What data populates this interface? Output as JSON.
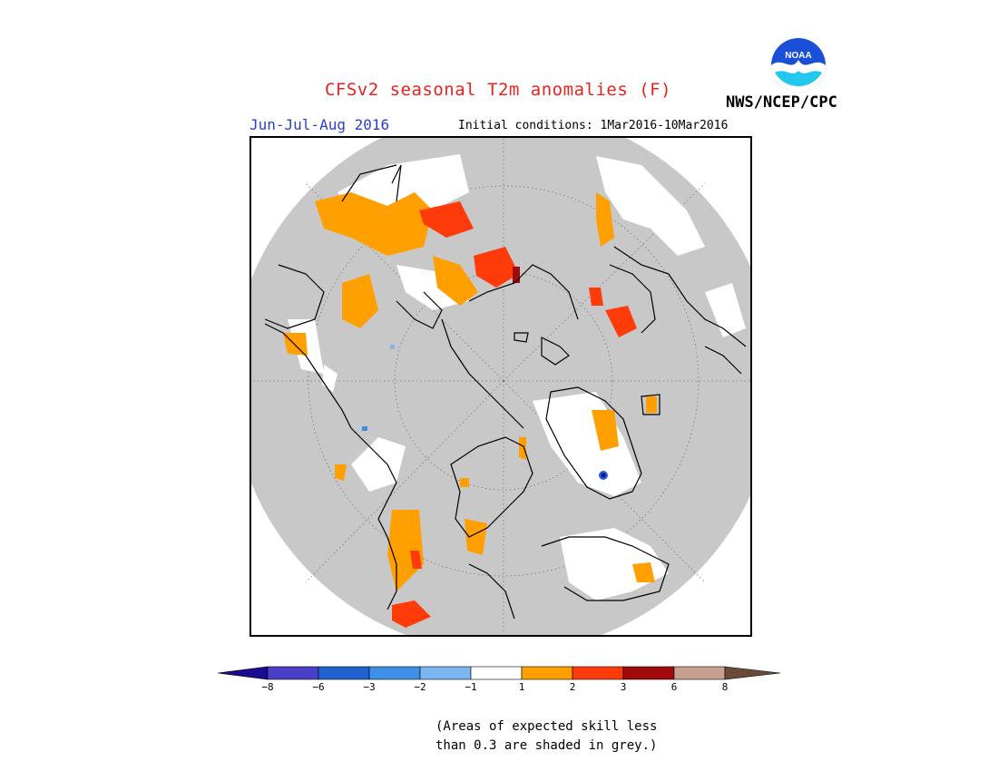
{
  "header": {
    "title": "CFSv2 seasonal T2m anomalies (F)",
    "agency": "NWS/NCEP/CPC",
    "logo_text": "NOAA",
    "period": "Jun-Jul-Aug 2016",
    "initial_conditions": "Initial conditions: 1Mar2016-10Mar2016"
  },
  "map": {
    "projection": "north-polar-stereographic",
    "background_color": "#c8c8c8",
    "outside_disk_color": "#ffffff",
    "coastline_color": "#000000"
  },
  "colorbar": {
    "ticks": [
      "−8",
      "−6",
      "−3",
      "−2",
      "−1",
      "1",
      "2",
      "3",
      "6",
      "8"
    ],
    "colors": [
      "#1a0b8f",
      "#4a40c8",
      "#1f63d2",
      "#3d8fe8",
      "#7cb6f0",
      "#ffffff",
      "#ff9f00",
      "#ff3b0a",
      "#a00a0a",
      "#c8a090",
      "#6b4a3a"
    ]
  },
  "footnote": {
    "line1": "(Areas of expected skill less",
    "line2": "than 0.3 are shaded in grey.)"
  }
}
